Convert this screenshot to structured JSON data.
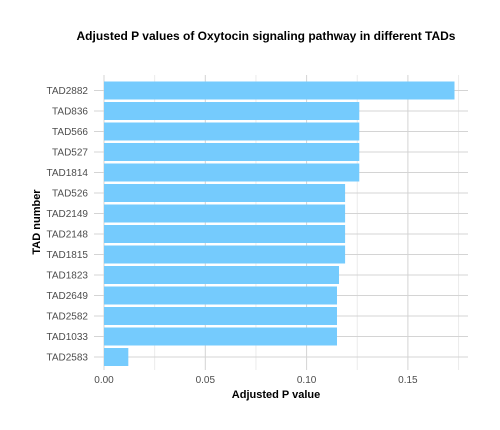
{
  "chart_data": {
    "type": "bar",
    "orientation": "horizontal",
    "title": "Adjusted P values of Oxytocin signaling pathway in different TADs",
    "xlabel": "Adjusted P value",
    "ylabel": "TAD number",
    "categories": [
      "TAD2882",
      "TAD836",
      "TAD566",
      "TAD527",
      "TAD1814",
      "TAD526",
      "TAD2149",
      "TAD2148",
      "TAD1815",
      "TAD1823",
      "TAD2649",
      "TAD2582",
      "TAD1033",
      "TAD2583"
    ],
    "values": [
      0.173,
      0.126,
      0.126,
      0.126,
      0.126,
      0.119,
      0.119,
      0.119,
      0.119,
      0.116,
      0.115,
      0.115,
      0.115,
      0.012
    ],
    "xlim": [
      0,
      0.175
    ],
    "xticks": [
      0,
      0.05,
      0.1,
      0.15
    ],
    "xtick_labels": [
      "0.00",
      "0.05",
      "0.10",
      "0.15"
    ],
    "grid": true,
    "bar_color": "#75cbfd"
  }
}
